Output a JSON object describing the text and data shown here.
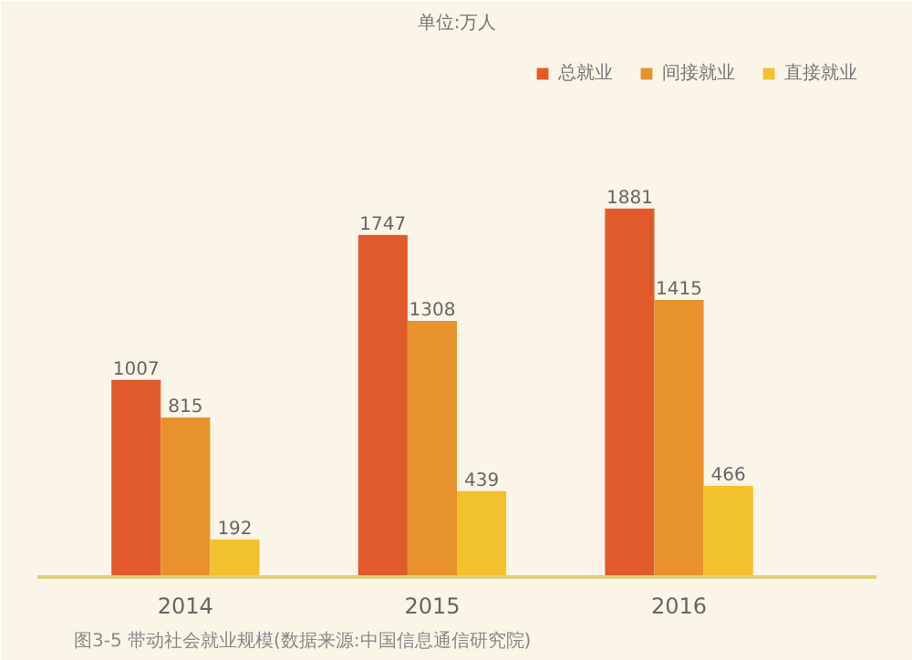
{
  "chart_data": {
    "type": "bar",
    "subtitle": "单位:万人",
    "categories": [
      "2014",
      "2015",
      "2016"
    ],
    "series": [
      {
        "name": "总就业",
        "color": "#e05a2b",
        "values": [
          1007,
          1747,
          1881
        ]
      },
      {
        "name": "间接就业",
        "color": "#e8922e",
        "values": [
          815,
          1308,
          1415
        ]
      },
      {
        "name": "直接就业",
        "color": "#f2c12e",
        "values": [
          192,
          439,
          466
        ]
      }
    ],
    "data_labels": true,
    "legend": "top right",
    "grid": false,
    "annotations": [
      "图3-5 带动社会就业规模(数据来源:中国信息通信研究院)"
    ]
  }
}
